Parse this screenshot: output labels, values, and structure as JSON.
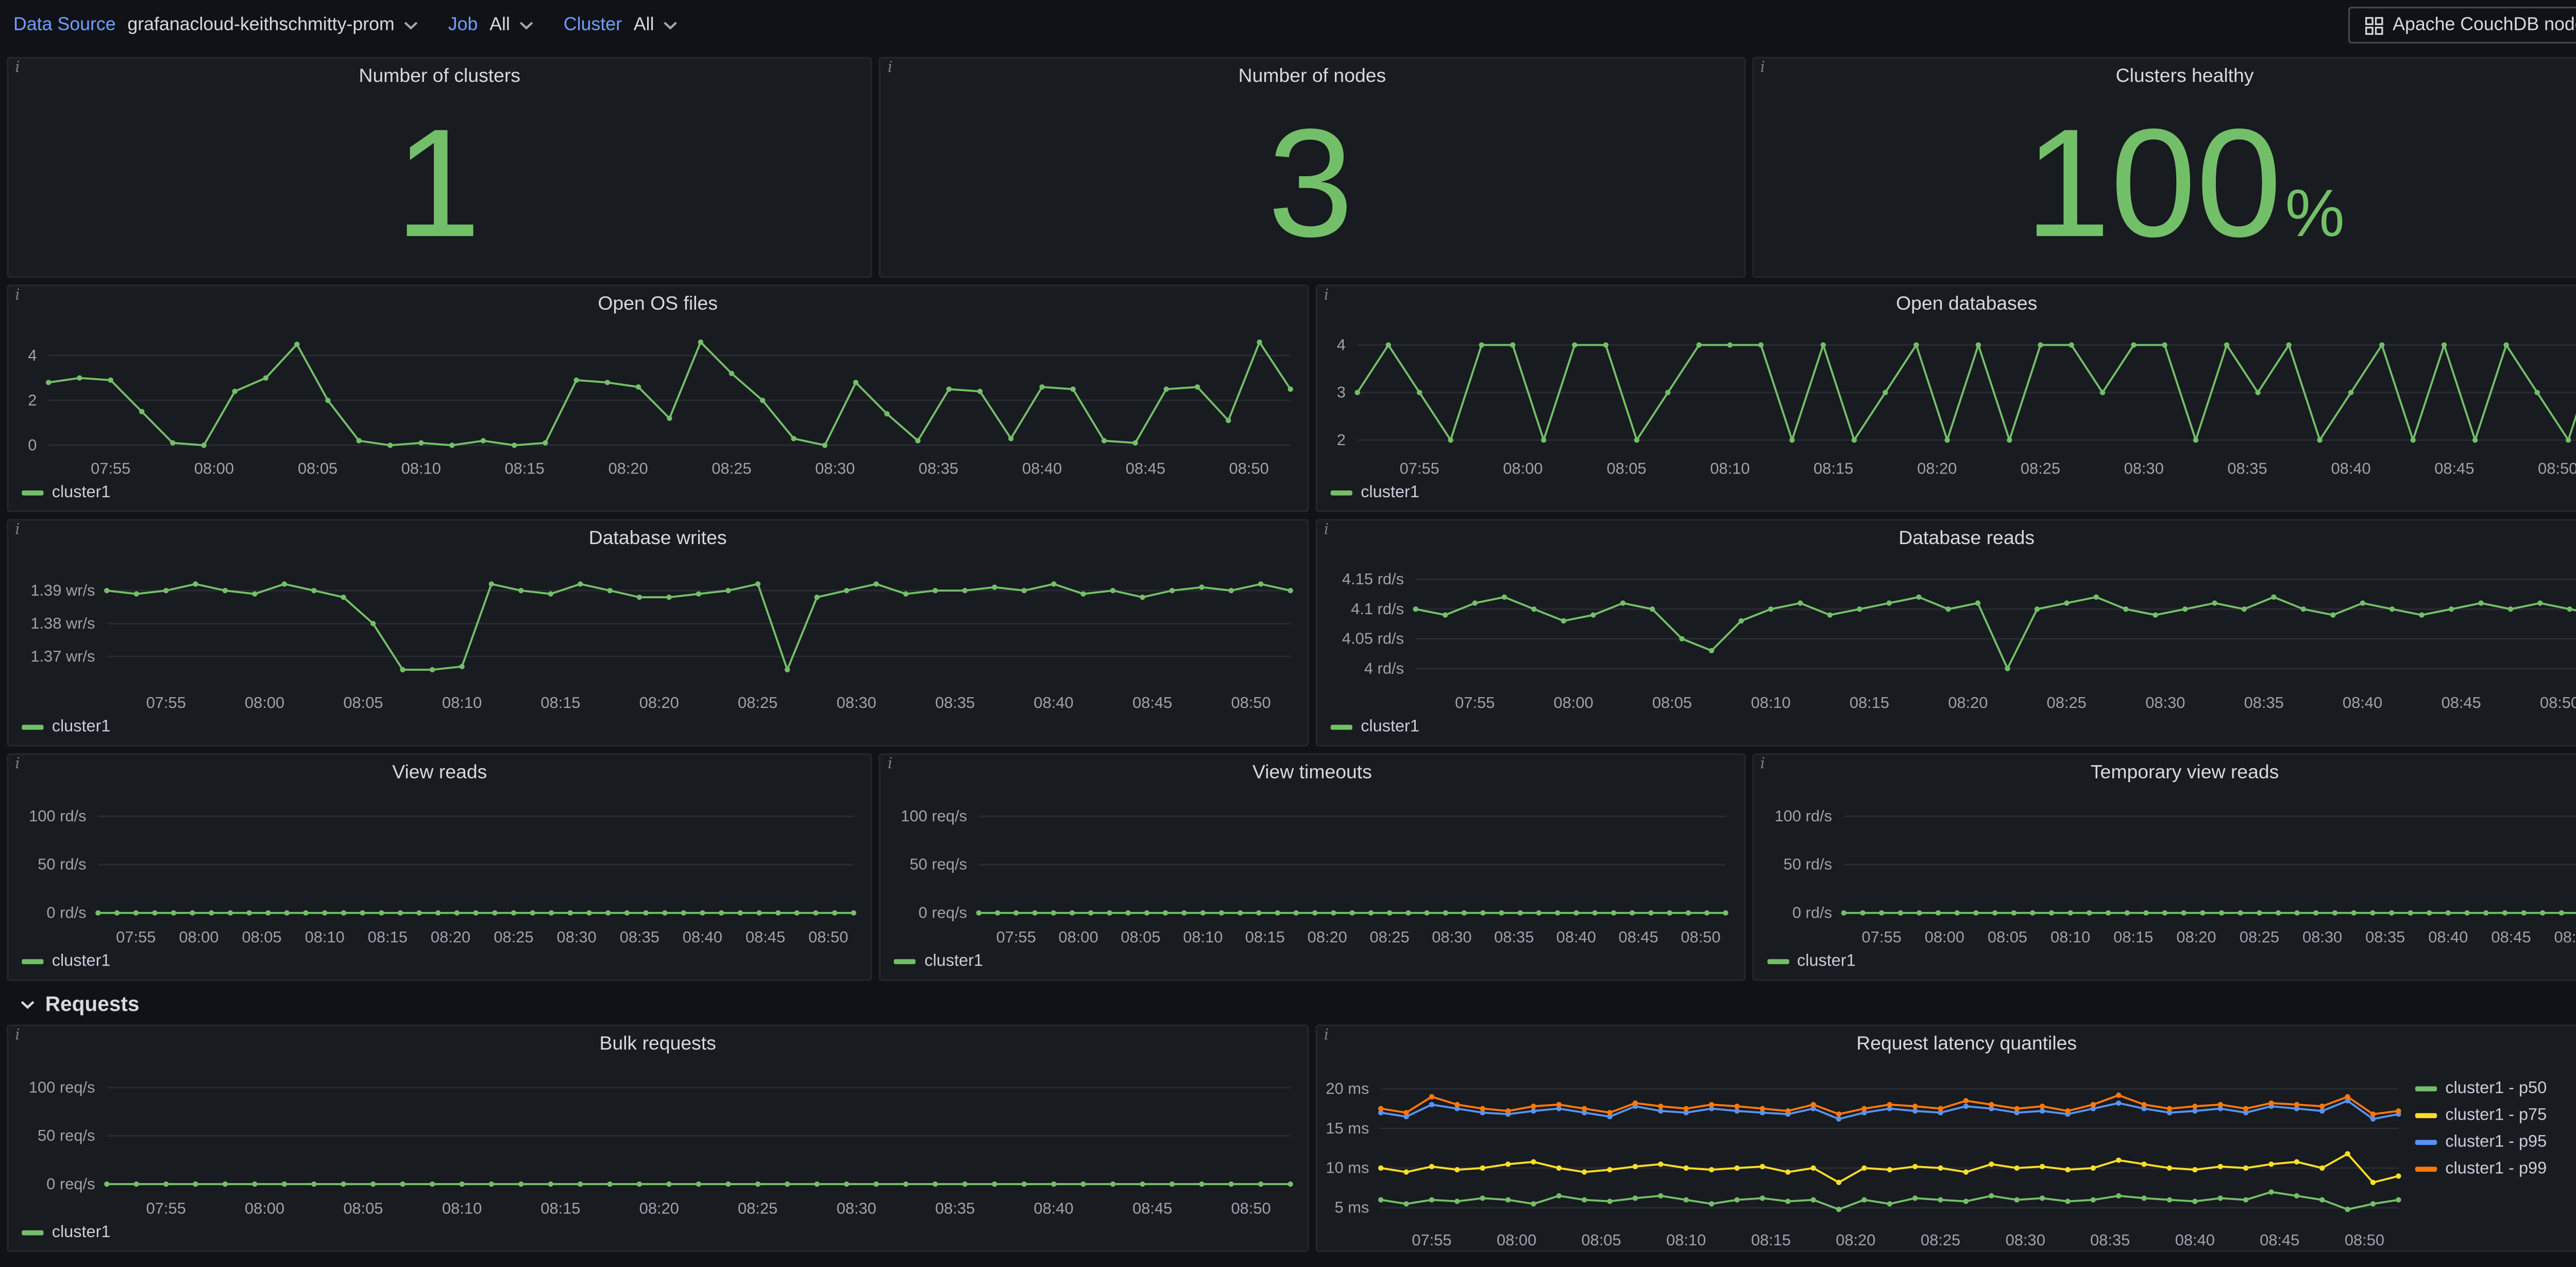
{
  "topbar": {
    "datasource_label": "Data Source",
    "datasource_value": "grafanacloud-keithschmitty-prom",
    "job_label": "Job",
    "job_value": "All",
    "cluster_label": "Cluster",
    "cluster_value": "All",
    "nodes_button": "Apache CouchDB nodes"
  },
  "section": {
    "requests": "Requests"
  },
  "stats": [
    {
      "title": "Number of clusters",
      "value": "1",
      "suffix": ""
    },
    {
      "title": "Number of nodes",
      "value": "3",
      "suffix": ""
    },
    {
      "title": "Clusters healthy",
      "value": "100",
      "suffix": "%"
    }
  ],
  "time_ticks": [
    "07:55",
    "08:00",
    "08:05",
    "08:10",
    "08:15",
    "08:20",
    "08:25",
    "08:30",
    "08:35",
    "08:40",
    "08:45",
    "08:50"
  ],
  "chart_data": {
    "open_os_files": {
      "type": "line",
      "title": "Open OS files",
      "ylim": [
        -0.3,
        5.0
      ],
      "yticks": [
        {
          "v": 0,
          "label": "0"
        },
        {
          "v": 2,
          "label": "2"
        },
        {
          "v": 4,
          "label": "4"
        }
      ],
      "series": [
        {
          "name": "cluster1",
          "color": "#73bf69",
          "values": [
            2.8,
            3.0,
            2.9,
            1.5,
            0.1,
            0.0,
            2.4,
            3.0,
            4.5,
            2.0,
            0.2,
            0.0,
            0.1,
            0.0,
            0.2,
            0.0,
            0.1,
            2.9,
            2.8,
            2.6,
            1.2,
            4.6,
            3.2,
            2.0,
            0.3,
            0.0,
            2.8,
            1.4,
            0.2,
            2.5,
            2.4,
            0.3,
            2.6,
            2.5,
            0.2,
            0.1,
            2.5,
            2.6,
            1.1,
            4.6,
            2.5
          ]
        }
      ],
      "legend": [
        {
          "label": "cluster1",
          "color": "#73bf69"
        }
      ]
    },
    "open_databases": {
      "type": "line",
      "title": "Open databases",
      "ylim": [
        1.75,
        4.25
      ],
      "yticks": [
        {
          "v": 2,
          "label": "2"
        },
        {
          "v": 3,
          "label": "3"
        },
        {
          "v": 4,
          "label": "4"
        }
      ],
      "series": [
        {
          "name": "cluster1",
          "color": "#73bf69",
          "values": [
            3,
            4,
            3,
            2,
            4,
            4,
            2,
            4,
            4,
            2,
            3,
            4,
            4,
            4,
            2,
            4,
            2,
            3,
            4,
            2,
            4,
            2,
            4,
            4,
            3,
            4,
            4,
            2,
            4,
            3,
            4,
            2,
            3,
            4,
            2,
            4,
            2,
            4,
            3,
            2,
            4
          ]
        }
      ],
      "legend": [
        {
          "label": "cluster1",
          "color": "#73bf69"
        }
      ]
    },
    "database_writes": {
      "type": "line",
      "title": "Database writes",
      "ylim": [
        1.361,
        1.397
      ],
      "yticks": [
        {
          "v": 1.37,
          "label": "1.37 wr/s"
        },
        {
          "v": 1.38,
          "label": "1.38 wr/s"
        },
        {
          "v": 1.39,
          "label": "1.39 wr/s"
        }
      ],
      "series": [
        {
          "name": "cluster1",
          "color": "#73bf69",
          "values": [
            1.39,
            1.389,
            1.39,
            1.392,
            1.39,
            1.389,
            1.392,
            1.39,
            1.388,
            1.38,
            1.366,
            1.366,
            1.367,
            1.392,
            1.39,
            1.389,
            1.392,
            1.39,
            1.388,
            1.388,
            1.389,
            1.39,
            1.392,
            1.366,
            1.388,
            1.39,
            1.392,
            1.389,
            1.39,
            1.39,
            1.391,
            1.39,
            1.392,
            1.389,
            1.39,
            1.388,
            1.39,
            1.391,
            1.39,
            1.392,
            1.39
          ]
        }
      ],
      "legend": [
        {
          "label": "cluster1",
          "color": "#73bf69"
        }
      ]
    },
    "database_reads": {
      "type": "line",
      "title": "Database reads",
      "ylim": [
        3.97,
        4.17
      ],
      "yticks": [
        {
          "v": 4.0,
          "label": "4 rd/s"
        },
        {
          "v": 4.05,
          "label": "4.05 rd/s"
        },
        {
          "v": 4.1,
          "label": "4.1 rd/s"
        },
        {
          "v": 4.15,
          "label": "4.15 rd/s"
        }
      ],
      "series": [
        {
          "name": "cluster1",
          "color": "#73bf69",
          "values": [
            4.1,
            4.09,
            4.11,
            4.12,
            4.1,
            4.08,
            4.09,
            4.11,
            4.1,
            4.05,
            4.03,
            4.08,
            4.1,
            4.11,
            4.09,
            4.1,
            4.11,
            4.12,
            4.1,
            4.11,
            4.0,
            4.1,
            4.11,
            4.12,
            4.1,
            4.09,
            4.1,
            4.11,
            4.1,
            4.12,
            4.1,
            4.09,
            4.11,
            4.1,
            4.09,
            4.1,
            4.11,
            4.1,
            4.11,
            4.1,
            4.09
          ]
        }
      ],
      "legend": [
        {
          "label": "cluster1",
          "color": "#73bf69"
        }
      ]
    },
    "view_reads": {
      "type": "line",
      "title": "View reads",
      "ylim": [
        -8,
        115
      ],
      "yticks": [
        {
          "v": 0,
          "label": "0 rd/s"
        },
        {
          "v": 50,
          "label": "50 rd/s"
        },
        {
          "v": 100,
          "label": "100 rd/s"
        }
      ],
      "series": [
        {
          "name": "cluster1",
          "color": "#73bf69",
          "values": [
            0,
            0,
            0,
            0,
            0,
            0,
            0,
            0,
            0,
            0,
            0,
            0,
            0,
            0,
            0,
            0,
            0,
            0,
            0,
            0,
            0,
            0,
            0,
            0,
            0,
            0,
            0,
            0,
            0,
            0,
            0,
            0,
            0,
            0,
            0,
            0,
            0,
            0,
            0,
            0,
            0
          ]
        }
      ],
      "legend": [
        {
          "label": "cluster1",
          "color": "#73bf69"
        }
      ]
    },
    "view_timeouts": {
      "type": "line",
      "title": "View timeouts",
      "ylim": [
        -8,
        115
      ],
      "yticks": [
        {
          "v": 0,
          "label": "0 req/s"
        },
        {
          "v": 50,
          "label": "50 req/s"
        },
        {
          "v": 100,
          "label": "100 req/s"
        }
      ],
      "series": [
        {
          "name": "cluster1",
          "color": "#73bf69",
          "values": [
            0,
            0,
            0,
            0,
            0,
            0,
            0,
            0,
            0,
            0,
            0,
            0,
            0,
            0,
            0,
            0,
            0,
            0,
            0,
            0,
            0,
            0,
            0,
            0,
            0,
            0,
            0,
            0,
            0,
            0,
            0,
            0,
            0,
            0,
            0,
            0,
            0,
            0,
            0,
            0,
            0
          ]
        }
      ],
      "legend": [
        {
          "label": "cluster1",
          "color": "#73bf69"
        }
      ]
    },
    "temporary_view_reads": {
      "type": "line",
      "title": "Temporary view reads",
      "ylim": [
        -8,
        115
      ],
      "yticks": [
        {
          "v": 0,
          "label": "0 rd/s"
        },
        {
          "v": 50,
          "label": "50 rd/s"
        },
        {
          "v": 100,
          "label": "100 rd/s"
        }
      ],
      "series": [
        {
          "name": "cluster1",
          "color": "#73bf69",
          "values": [
            0,
            0,
            0,
            0,
            0,
            0,
            0,
            0,
            0,
            0,
            0,
            0,
            0,
            0,
            0,
            0,
            0,
            0,
            0,
            0,
            0,
            0,
            0,
            0,
            0,
            0,
            0,
            0,
            0,
            0,
            0,
            0,
            0,
            0,
            0,
            0,
            0,
            0,
            0,
            0,
            0
          ]
        }
      ],
      "legend": [
        {
          "label": "cluster1",
          "color": "#73bf69"
        }
      ]
    },
    "bulk_requests": {
      "type": "line",
      "title": "Bulk requests",
      "ylim": [
        -8,
        115
      ],
      "yticks": [
        {
          "v": 0,
          "label": "0 req/s"
        },
        {
          "v": 50,
          "label": "50 req/s"
        },
        {
          "v": 100,
          "label": "100 req/s"
        }
      ],
      "series": [
        {
          "name": "cluster1",
          "color": "#73bf69",
          "values": [
            0,
            0,
            0,
            0,
            0,
            0,
            0,
            0,
            0,
            0,
            0,
            0,
            0,
            0,
            0,
            0,
            0,
            0,
            0,
            0,
            0,
            0,
            0,
            0,
            0,
            0,
            0,
            0,
            0,
            0,
            0,
            0,
            0,
            0,
            0,
            0,
            0,
            0,
            0,
            0,
            0
          ]
        }
      ],
      "legend": [
        {
          "label": "cluster1",
          "color": "#73bf69"
        }
      ]
    },
    "request_latency_quantiles": {
      "type": "line",
      "title": "Request latency quantiles",
      "ylim": [
        3,
        22
      ],
      "yticks": [
        {
          "v": 5,
          "label": "5 ms"
        },
        {
          "v": 10,
          "label": "10 ms"
        },
        {
          "v": 15,
          "label": "15 ms"
        },
        {
          "v": 20,
          "label": "20 ms"
        }
      ],
      "series": [
        {
          "name": "cluster1 - p50",
          "color": "#73bf69",
          "values": [
            6,
            5.5,
            6,
            5.8,
            6.2,
            6,
            5.5,
            6.5,
            6,
            5.8,
            6.2,
            6.5,
            6,
            5.5,
            6,
            6.2,
            5.8,
            6,
            4.8,
            6,
            5.5,
            6.2,
            6,
            5.8,
            6.5,
            6,
            6.2,
            5.8,
            6,
            6.5,
            6.2,
            6,
            5.8,
            6.2,
            6,
            7,
            6.5,
            6,
            4.8,
            5.5,
            6
          ]
        },
        {
          "name": "cluster1 - p75",
          "color": "#fade2a",
          "values": [
            10,
            9.5,
            10.2,
            9.8,
            10,
            10.5,
            10.8,
            10,
            9.5,
            9.8,
            10.2,
            10.5,
            10,
            9.8,
            10,
            10.2,
            9.5,
            10,
            8.2,
            10,
            9.8,
            10.2,
            10,
            9.5,
            10.5,
            10,
            10.2,
            9.8,
            10,
            11,
            10.5,
            10,
            9.8,
            10.2,
            10,
            10.5,
            10.8,
            10,
            11.8,
            8.2,
            9
          ]
        },
        {
          "name": "cluster1 - p95",
          "color": "#5794f2",
          "values": [
            17,
            16.5,
            18,
            17.5,
            17,
            16.8,
            17.2,
            17.5,
            17,
            16.5,
            17.8,
            17.2,
            17,
            17.5,
            17.2,
            17,
            16.8,
            17.5,
            16.2,
            17,
            17.5,
            17.2,
            17,
            17.8,
            17.5,
            17,
            17.2,
            16.8,
            17.5,
            18.2,
            17.5,
            17,
            17.2,
            17.5,
            17,
            17.8,
            17.5,
            17.2,
            18.5,
            16.2,
            16.8
          ]
        },
        {
          "name": "cluster1 - p99",
          "color": "#ff780a",
          "values": [
            17.5,
            17,
            19,
            18,
            17.5,
            17.2,
            17.8,
            18,
            17.5,
            17,
            18.2,
            17.8,
            17.5,
            18,
            17.8,
            17.5,
            17.2,
            18,
            16.8,
            17.5,
            18,
            17.8,
            17.5,
            18.5,
            18,
            17.5,
            17.8,
            17.2,
            18,
            19.2,
            18,
            17.5,
            17.8,
            18,
            17.5,
            18.2,
            18,
            17.8,
            19,
            16.8,
            17.2
          ]
        }
      ],
      "legend": [
        {
          "label": "cluster1 - p50",
          "color": "#73bf69"
        },
        {
          "label": "cluster1 - p75",
          "color": "#fade2a"
        },
        {
          "label": "cluster1 - p95",
          "color": "#5794f2"
        },
        {
          "label": "cluster1 - p99",
          "color": "#ff780a"
        }
      ]
    }
  }
}
